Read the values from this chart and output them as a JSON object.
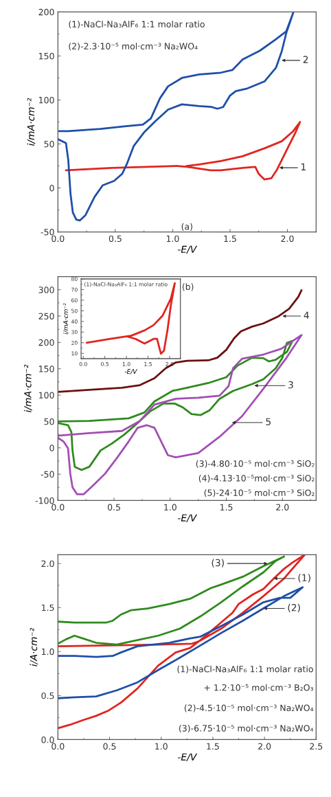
{
  "chart_data": [
    {
      "type": "line",
      "xlabel": "-E/V",
      "ylabel": "i/mA·cm⁻²",
      "xlim": [
        0,
        2.25
      ],
      "ylim": [
        -50,
        200
      ],
      "xticks": [
        {
          "value": 0,
          "label": "0.0"
        },
        {
          "value": 0.5,
          "label": "0.5"
        },
        {
          "value": 1,
          "label": "1.0"
        },
        {
          "value": 1.5,
          "label": "1.5"
        },
        {
          "value": 2,
          "label": "2.0"
        }
      ],
      "yticks": [
        -50,
        0,
        50,
        100,
        150,
        200
      ],
      "series": [
        {
          "color": "#e0251f",
          "x": [
            0.07,
            0.47,
            1.04,
            1.13,
            1.33,
            1.42,
            1.61,
            1.72,
            1.75,
            1.8,
            1.86,
            1.91,
            1.99,
            2.07,
            2.11,
            2.05,
            1.95,
            1.8,
            1.61,
            1.42,
            1.23,
            1.12
          ],
          "values": [
            20,
            22.7,
            25,
            24,
            20,
            20,
            22.7,
            24,
            16,
            9.6,
            11,
            21,
            42,
            63,
            75,
            64.5,
            53,
            45,
            36,
            30.5,
            26.6,
            25
          ]
        },
        {
          "color": "#1f4fa8",
          "x": [
            0,
            0.07,
            0.09,
            0.11,
            0.13,
            0.16,
            0.19,
            0.24,
            0.32,
            0.39,
            0.49,
            0.56,
            0.6,
            0.66,
            0.75,
            0.85,
            0.96,
            1.08,
            1.23,
            1.34,
            1.39,
            1.44,
            1.5,
            1.55,
            1.65,
            1.8,
            1.9,
            1.95,
            1.99,
            2.05,
            1.99,
            1.9,
            1.76,
            1.61,
            1.52,
            1.42,
            1.23,
            1.08,
            0.96,
            0.89,
            0.81,
            0.74,
            0.58,
            0.37,
            0.09,
            0.01
          ],
          "values": [
            55.4,
            51,
            32,
            -7,
            -28,
            -36,
            -37,
            -31,
            -10,
            3,
            8,
            16,
            27,
            47.5,
            63,
            76,
            89,
            95,
            93,
            92,
            90,
            92,
            105,
            110,
            113,
            121,
            136.5,
            155,
            176,
            199,
            178,
            169,
            156,
            146,
            134,
            131,
            129,
            125,
            115.5,
            102,
            79,
            72,
            70,
            67,
            64.5,
            64.5
          ]
        }
      ],
      "annotations": [
        "(1)-NaCl-Na₃AlF₆ 1:1 molar ratio",
        "(2)-2.3·10⁻⁵ mol·cm⁻³ Na₂WO₄",
        "(a)",
        {
          "text": "2",
          "x": 1.95,
          "y": 145
        },
        {
          "text": "1",
          "x": 1.93,
          "y": 23
        }
      ]
    },
    {
      "type": "line",
      "xlabel": "-E/V",
      "ylabel": "i/mA·cm⁻²",
      "xlim": [
        0,
        2.3
      ],
      "ylim": [
        -100,
        325
      ],
      "xticks": [
        {
          "value": 0,
          "label": "0.0"
        },
        {
          "value": 0.5,
          "label": "0.5"
        },
        {
          "value": 1,
          "label": "1.0"
        },
        {
          "value": 1.5,
          "label": "1.5"
        },
        {
          "value": 2,
          "label": "2.0"
        }
      ],
      "yticks": [
        -100,
        -50,
        0,
        50,
        100,
        150,
        200,
        250,
        300
      ],
      "series": [
        {
          "color": "#6b1010",
          "x": [
            0,
            0.28,
            0.57,
            0.73,
            0.86,
            0.96,
            1.05,
            1.15,
            1.34,
            1.42,
            1.5,
            1.57,
            1.63,
            1.73,
            1.83,
            1.96,
            2.06,
            2.14,
            2.17
          ],
          "values": [
            106,
            110,
            114,
            119,
            132,
            151,
            162,
            165,
            166,
            171,
            186,
            208,
            221,
            230,
            236,
            249,
            264,
            286,
            299
          ]
        },
        {
          "color": "#2f8a1e",
          "x": [
            0,
            0.09,
            0.12,
            0.13,
            0.15,
            0.21,
            0.28,
            0.38,
            0.48,
            0.59,
            0.71,
            0.82,
            0.94,
            1.04,
            1.11,
            1.19,
            1.27,
            1.35,
            1.44,
            1.56,
            1.73,
            1.83,
            1.94,
            2.0,
            2.04,
            2.09,
            2.04,
            1.94,
            1.88,
            1.83,
            1.73,
            1.6,
            1.5,
            1.34,
            1.15,
            1.02,
            0.86,
            0.77,
            0.63,
            0.28,
            0
          ],
          "values": [
            47,
            43,
            30,
            -5,
            -36,
            -42,
            -36,
            -5,
            8,
            25,
            47,
            69,
            84,
            84,
            77,
            64,
            62,
            71,
            93,
            108,
            121,
            130,
            151,
            171,
            199,
            203,
            182,
            167,
            164,
            170,
            171,
            156,
            134,
            123,
            114,
            108,
            88,
            67,
            56,
            51,
            50
          ]
        },
        {
          "color": "#a24fb4",
          "x": [
            0,
            0.05,
            0.09,
            0.11,
            0.13,
            0.17,
            0.23,
            0.32,
            0.42,
            0.53,
            0.63,
            0.71,
            0.79,
            0.86,
            0.92,
            0.98,
            1.05,
            1.25,
            1.44,
            1.64,
            1.83,
            2.03,
            2.17,
            1.99,
            1.83,
            1.64,
            1.56,
            1.52,
            1.44,
            1.25,
            1.05,
            0.86,
            0.73,
            0.57,
            0.28,
            0
          ],
          "values": [
            19,
            12,
            -1,
            -49,
            -75,
            -88,
            -88,
            -70,
            -49,
            -18,
            12,
            38,
            43,
            38,
            12,
            -14,
            -18,
            -10,
            21,
            60,
            112,
            169,
            214,
            188,
            177,
            169,
            151,
            117,
            99,
            95,
            93,
            82,
            51,
            32,
            28,
            23
          ]
        }
      ],
      "annotations": [
        "(b)",
        "(3)-4.80·10⁻⁵ mol·cm⁻³ SiO₂",
        "(4)-4.13·10⁻⁵mol·cm⁻³ SiO₂",
        "(5)-24·10⁻⁵ mol·cm⁻³ SiO₂",
        {
          "text": "4",
          "x": 2.0,
          "y": 250
        },
        {
          "text": "3",
          "x": 1.75,
          "y": 118
        },
        {
          "text": "5",
          "x": 1.55,
          "y": 48
        }
      ]
    },
    {
      "type": "line",
      "xlabel": "-E/V",
      "ylabel": "i/mA·cm⁻²",
      "xlim": [
        -0.05,
        2.25
      ],
      "ylim": [
        5,
        80
      ],
      "xticks": [
        {
          "value": 0,
          "label": "0.0"
        },
        {
          "value": 0.5,
          "label": "0.5"
        },
        {
          "value": 1,
          "label": "1.0"
        },
        {
          "value": 1.5,
          "label": "1.5"
        },
        {
          "value": 2,
          "label": "2.0"
        }
      ],
      "yticks": [
        10,
        20,
        30,
        40,
        50,
        60,
        70,
        80
      ],
      "series": [
        {
          "color": "#e0251f",
          "x": [
            0.08,
            0.63,
            1.0,
            1.21,
            1.42,
            1.63,
            1.71,
            1.76,
            1.8,
            1.87,
            1.95,
            2.03,
            2.12,
            2.03,
            1.84,
            1.63,
            1.42,
            1.11,
            1.0
          ],
          "values": [
            20,
            23.6,
            26,
            23.6,
            19.2,
            23.6,
            23.6,
            15.6,
            9.6,
            12.6,
            31.6,
            55.6,
            76,
            61.6,
            45.6,
            36.6,
            31.6,
            26.6,
            26
          ]
        }
      ],
      "annotations": [
        "(1)-NaCl-Na₃AlF₆ 1:1 molar ratio"
      ]
    },
    {
      "type": "line",
      "xlabel": "-E/V",
      "ylabel": "i/A·cm⁻²",
      "xlim": [
        0,
        2.5
      ],
      "ylim": [
        0,
        2.1
      ],
      "xticks": [
        {
          "value": 0,
          "label": "0.0"
        },
        {
          "value": 0.5,
          "label": "0.5"
        },
        {
          "value": 1,
          "label": "1.0"
        },
        {
          "value": 1.5,
          "label": "1.5"
        },
        {
          "value": 2,
          "label": "2.0"
        },
        {
          "value": 2.5,
          "label": "2.5"
        }
      ],
      "yticks": [
        {
          "value": 0,
          "label": "0.0"
        },
        {
          "value": 0.5,
          "label": "0.5"
        },
        {
          "value": 1,
          "label": "1.0"
        },
        {
          "value": 1.5,
          "label": "1.5"
        },
        {
          "value": 2,
          "label": "2.0"
        }
      ],
      "series": [
        {
          "color": "#e0251f",
          "x": [
            0,
            0.12,
            0.24,
            0.37,
            0.49,
            0.61,
            0.77,
            0.97,
            1.14,
            1.28,
            1.38,
            1.48,
            1.58,
            1.69,
            1.75,
            1.89,
            1.99,
            2.09,
            2.19,
            2.27,
            2.39,
            2.3,
            2.19,
            1.99,
            1.79,
            1.58,
            1.37,
            1.3,
            1.0,
            0.5,
            0
          ],
          "values": [
            0.13,
            0.17,
            0.22,
            0.27,
            0.33,
            0.42,
            0.58,
            0.84,
            0.99,
            1.04,
            1.13,
            1.23,
            1.33,
            1.44,
            1.54,
            1.65,
            1.71,
            1.83,
            1.94,
            2.01,
            2.1,
            1.98,
            1.83,
            1.63,
            1.44,
            1.26,
            1.12,
            1.09,
            1.08,
            1.07,
            1.06
          ]
        },
        {
          "color": "#1f4fa8",
          "x": [
            0,
            0.16,
            0.37,
            0.57,
            0.77,
            0.97,
            1.18,
            1.38,
            1.58,
            1.79,
            1.99,
            2.19,
            2.37,
            2.25,
            2.15,
            1.99,
            1.79,
            1.58,
            1.38,
            1.28,
            1.08,
            0.77,
            0.61,
            0.53,
            0.37,
            0.16,
            0
          ],
          "values": [
            0.47,
            0.48,
            0.49,
            0.56,
            0.65,
            0.79,
            0.93,
            1.07,
            1.21,
            1.35,
            1.49,
            1.63,
            1.73,
            1.61,
            1.61,
            1.56,
            1.42,
            1.29,
            1.17,
            1.15,
            1.1,
            1.06,
            0.99,
            0.95,
            0.94,
            0.95,
            0.95
          ]
        },
        {
          "color": "#2f8a1e",
          "x": [
            0,
            0.16,
            0.47,
            0.53,
            0.61,
            0.71,
            0.87,
            1.08,
            1.28,
            1.48,
            1.58,
            1.79,
            1.99,
            2.19,
            2.11,
            1.99,
            1.79,
            1.58,
            1.38,
            1.18,
            0.97,
            0.77,
            0.57,
            0.37,
            0.24,
            0.16,
            0.08,
            0
          ],
          "values": [
            1.34,
            1.33,
            1.33,
            1.35,
            1.42,
            1.47,
            1.49,
            1.54,
            1.6,
            1.72,
            1.76,
            1.85,
            1.97,
            2.08,
            2.03,
            1.9,
            1.74,
            1.56,
            1.4,
            1.26,
            1.18,
            1.13,
            1.08,
            1.1,
            1.15,
            1.18,
            1.14,
            1.09
          ]
        }
      ],
      "annotations": [
        "(1)-NaCl-Na₃AlF₆ 1:1 molar ratio",
        "+ 1.2·10⁻⁵ mol·cm⁻³ B₂O₃",
        "(2)-4.5·10⁻⁵ mol·cm⁻³ Na₂WO₄",
        "(3)-6.75·10⁻⁵ mol·cm⁻³ Na₂WO₄",
        {
          "text": "(3)",
          "x": 2.03,
          "y": 2.0
        },
        {
          "text": "(1)",
          "x": 2.09,
          "y": 1.83
        },
        {
          "text": "(2)",
          "x": 1.99,
          "y": 1.49
        }
      ]
    }
  ]
}
